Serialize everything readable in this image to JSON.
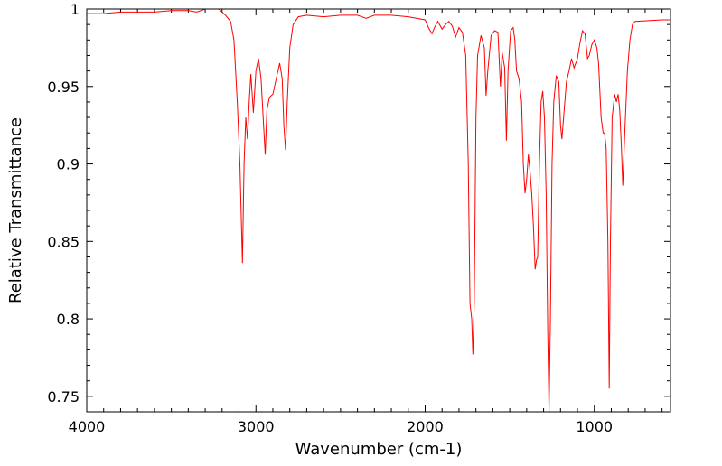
{
  "chart_data": {
    "type": "line",
    "xlabel": "Wavenumber (cm-1)",
    "ylabel": "Relative Transmittance",
    "xlim": [
      4000,
      550
    ],
    "ylim": [
      0.74,
      1.0
    ],
    "x_reversed": true,
    "xticks": [
      4000,
      3000,
      2000,
      1000
    ],
    "xtick_labels": [
      "4000",
      "3000",
      "2000",
      "1000"
    ],
    "yticks": [
      0.75,
      0.8,
      0.85,
      0.9,
      0.95,
      1.0
    ],
    "ytick_labels": [
      "0.75",
      "0.8",
      "0.85",
      "0.9",
      "0.95",
      "1"
    ],
    "grid": false,
    "line_color": "#ff0000",
    "series": [
      {
        "points": [
          [
            4000,
            0.997
          ],
          [
            3900,
            0.997
          ],
          [
            3800,
            0.998
          ],
          [
            3700,
            0.998
          ],
          [
            3600,
            0.998
          ],
          [
            3500,
            0.999
          ],
          [
            3400,
            0.999
          ],
          [
            3350,
            0.998
          ],
          [
            3300,
            1.0
          ],
          [
            3220,
            1.0
          ],
          [
            3180,
            0.996
          ],
          [
            3150,
            0.992
          ],
          [
            3130,
            0.98
          ],
          [
            3110,
            0.94
          ],
          [
            3095,
            0.9
          ],
          [
            3080,
            0.836
          ],
          [
            3070,
            0.9
          ],
          [
            3060,
            0.93
          ],
          [
            3050,
            0.916
          ],
          [
            3040,
            0.94
          ],
          [
            3030,
            0.958
          ],
          [
            3015,
            0.933
          ],
          [
            3000,
            0.96
          ],
          [
            2985,
            0.968
          ],
          [
            2970,
            0.955
          ],
          [
            2955,
            0.925
          ],
          [
            2945,
            0.906
          ],
          [
            2935,
            0.935
          ],
          [
            2920,
            0.943
          ],
          [
            2900,
            0.945
          ],
          [
            2880,
            0.955
          ],
          [
            2860,
            0.965
          ],
          [
            2845,
            0.955
          ],
          [
            2835,
            0.925
          ],
          [
            2825,
            0.909
          ],
          [
            2815,
            0.94
          ],
          [
            2800,
            0.975
          ],
          [
            2780,
            0.99
          ],
          [
            2750,
            0.995
          ],
          [
            2700,
            0.996
          ],
          [
            2600,
            0.995
          ],
          [
            2500,
            0.996
          ],
          [
            2400,
            0.996
          ],
          [
            2350,
            0.994
          ],
          [
            2300,
            0.996
          ],
          [
            2200,
            0.996
          ],
          [
            2100,
            0.995
          ],
          [
            2000,
            0.993
          ],
          [
            1980,
            0.988
          ],
          [
            1960,
            0.984
          ],
          [
            1945,
            0.988
          ],
          [
            1925,
            0.992
          ],
          [
            1900,
            0.987
          ],
          [
            1880,
            0.99
          ],
          [
            1860,
            0.992
          ],
          [
            1840,
            0.989
          ],
          [
            1820,
            0.982
          ],
          [
            1800,
            0.988
          ],
          [
            1780,
            0.985
          ],
          [
            1760,
            0.97
          ],
          [
            1745,
            0.9
          ],
          [
            1735,
            0.81
          ],
          [
            1725,
            0.8
          ],
          [
            1718,
            0.777
          ],
          [
            1710,
            0.81
          ],
          [
            1700,
            0.93
          ],
          [
            1690,
            0.97
          ],
          [
            1670,
            0.983
          ],
          [
            1650,
            0.975
          ],
          [
            1640,
            0.944
          ],
          [
            1630,
            0.96
          ],
          [
            1610,
            0.983
          ],
          [
            1590,
            0.986
          ],
          [
            1570,
            0.985
          ],
          [
            1555,
            0.95
          ],
          [
            1545,
            0.972
          ],
          [
            1530,
            0.962
          ],
          [
            1520,
            0.915
          ],
          [
            1510,
            0.96
          ],
          [
            1495,
            0.986
          ],
          [
            1480,
            0.988
          ],
          [
            1470,
            0.98
          ],
          [
            1460,
            0.96
          ],
          [
            1445,
            0.955
          ],
          [
            1430,
            0.94
          ],
          [
            1420,
            0.9
          ],
          [
            1410,
            0.881
          ],
          [
            1400,
            0.89
          ],
          [
            1390,
            0.906
          ],
          [
            1380,
            0.895
          ],
          [
            1370,
            0.88
          ],
          [
            1360,
            0.86
          ],
          [
            1350,
            0.832
          ],
          [
            1342,
            0.838
          ],
          [
            1335,
            0.84
          ],
          [
            1325,
            0.9
          ],
          [
            1315,
            0.94
          ],
          [
            1305,
            0.947
          ],
          [
            1295,
            0.93
          ],
          [
            1285,
            0.88
          ],
          [
            1275,
            0.79
          ],
          [
            1268,
            0.74
          ],
          [
            1260,
            0.8
          ],
          [
            1250,
            0.9
          ],
          [
            1240,
            0.94
          ],
          [
            1225,
            0.957
          ],
          [
            1210,
            0.953
          ],
          [
            1200,
            0.925
          ],
          [
            1192,
            0.916
          ],
          [
            1182,
            0.93
          ],
          [
            1165,
            0.953
          ],
          [
            1150,
            0.96
          ],
          [
            1135,
            0.968
          ],
          [
            1120,
            0.962
          ],
          [
            1100,
            0.968
          ],
          [
            1085,
            0.978
          ],
          [
            1070,
            0.986
          ],
          [
            1055,
            0.984
          ],
          [
            1040,
            0.968
          ],
          [
            1030,
            0.97
          ],
          [
            1015,
            0.977
          ],
          [
            1000,
            0.98
          ],
          [
            985,
            0.975
          ],
          [
            975,
            0.965
          ],
          [
            960,
            0.93
          ],
          [
            948,
            0.92
          ],
          [
            940,
            0.92
          ],
          [
            930,
            0.91
          ],
          [
            920,
            0.85
          ],
          [
            912,
            0.755
          ],
          [
            905,
            0.85
          ],
          [
            895,
            0.93
          ],
          [
            880,
            0.945
          ],
          [
            870,
            0.94
          ],
          [
            860,
            0.945
          ],
          [
            850,
            0.935
          ],
          [
            840,
            0.91
          ],
          [
            832,
            0.886
          ],
          [
            820,
            0.92
          ],
          [
            805,
            0.96
          ],
          [
            790,
            0.98
          ],
          [
            775,
            0.99
          ],
          [
            760,
            0.992
          ],
          [
            600,
            0.993
          ],
          [
            550,
            0.993
          ]
        ]
      }
    ]
  }
}
